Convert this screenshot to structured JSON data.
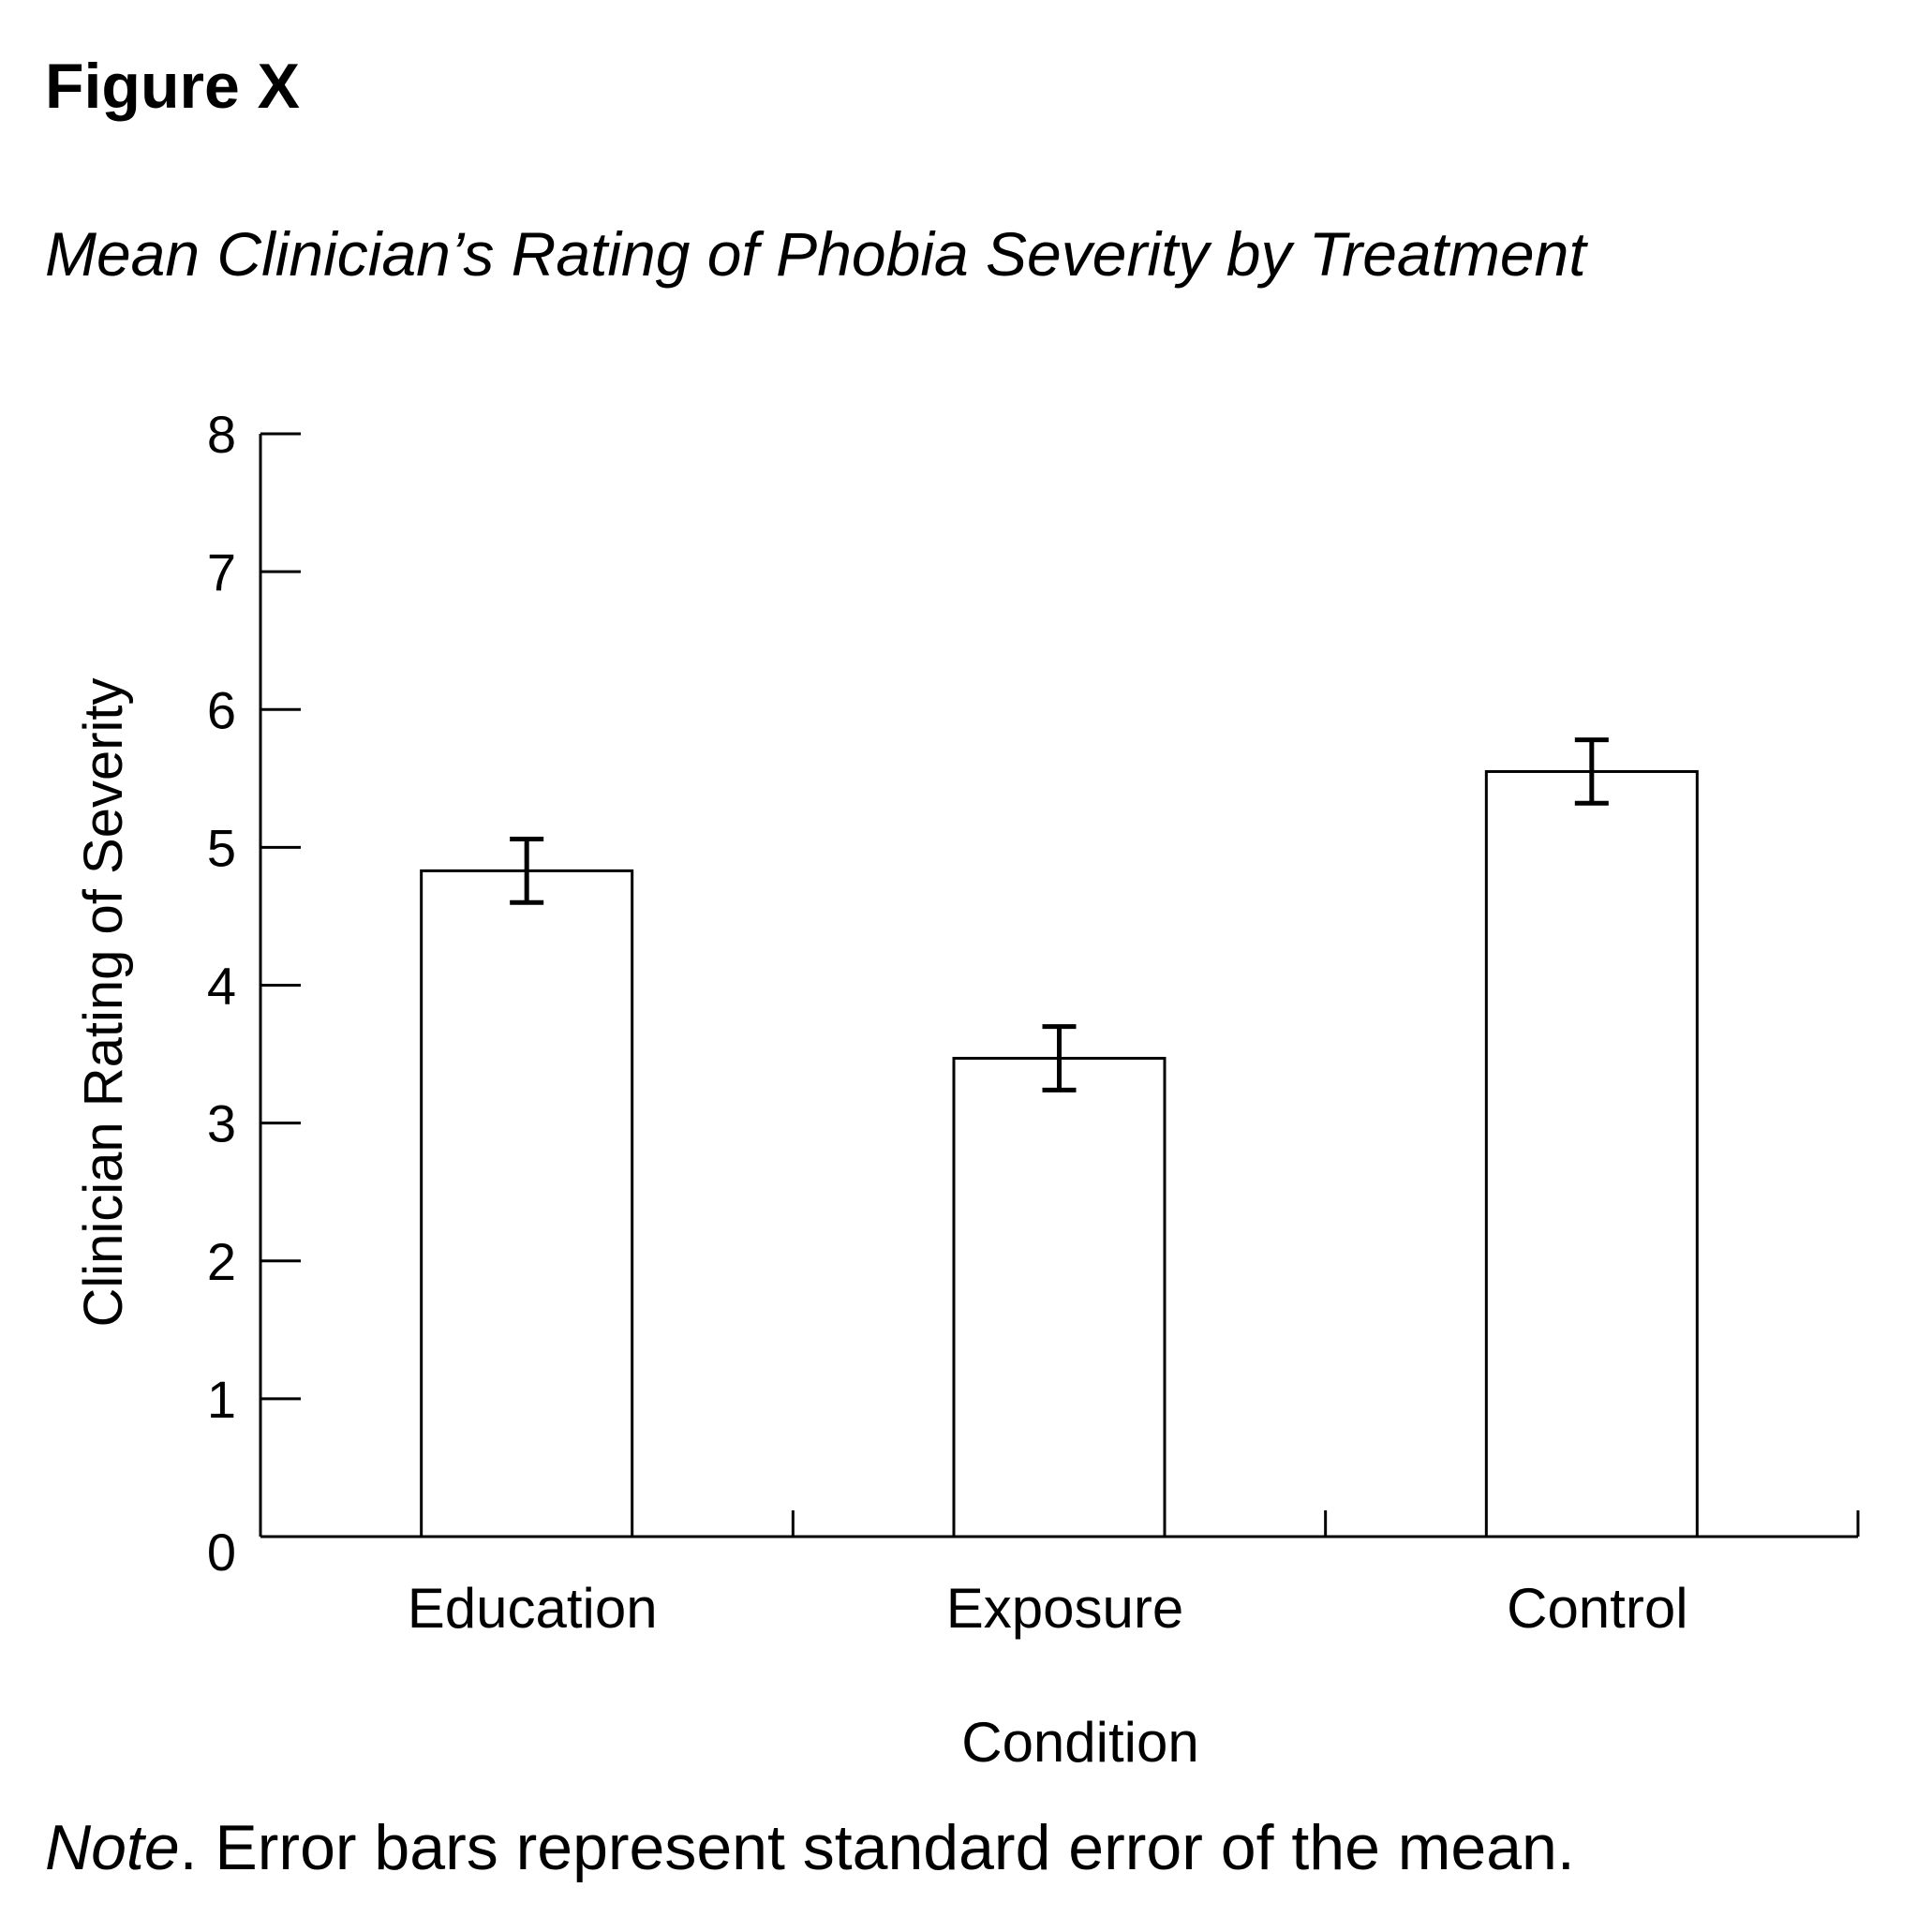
{
  "figure_label": "Figure X",
  "figure_title": "Mean Clinician’s Rating of Phobia Severity by Treatment",
  "note": {
    "prefix": "Note",
    "text": ". Error bars represent standard error of the mean."
  },
  "chart_data": {
    "type": "bar",
    "categories": [
      "Education",
      "Exposure",
      "Control"
    ],
    "values": [
      4.83,
      3.47,
      5.55
    ],
    "error": [
      0.23,
      0.23,
      0.23
    ],
    "xlabel": "Condition",
    "ylabel": "Clinician Rating of Severity",
    "ylim": [
      0,
      8
    ],
    "yticks": [
      0,
      1,
      2,
      3,
      4,
      5,
      6,
      7,
      8
    ],
    "grid": false,
    "bar_fill": "#ffffff",
    "bar_stroke": "#000000"
  }
}
